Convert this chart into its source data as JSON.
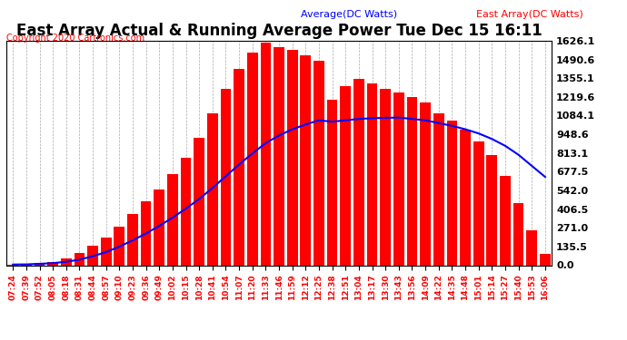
{
  "title": "East Array Actual & Running Average Power Tue Dec 15 16:11",
  "copyright": "Copyright 2020 Cartronics.com",
  "legend_avg": "Average(DC Watts)",
  "legend_east": "East Array(DC Watts)",
  "ylabel_right_values": [
    1626.1,
    1490.6,
    1355.1,
    1219.6,
    1084.1,
    948.6,
    813.1,
    677.5,
    542.0,
    406.5,
    271.0,
    135.5,
    0.0
  ],
  "ymax": 1626.1,
  "ymin": 0.0,
  "bar_color": "#FF0000",
  "avg_line_color": "#0000FF",
  "bg_color": "#FFFFFF",
  "grid_color": "#AAAAAA",
  "title_color": "#000000",
  "copyright_color": "#FF0000",
  "legend_avg_color": "#0000FF",
  "legend_east_color": "#FF0000",
  "x_tick_interval": 5,
  "time_labels": [
    "07:24",
    "07:39",
    "07:52",
    "08:05",
    "08:18",
    "08:31",
    "08:44",
    "08:57",
    "09:10",
    "09:23",
    "09:36",
    "09:49",
    "10:02",
    "10:15",
    "10:28",
    "10:41",
    "10:54",
    "11:07",
    "11:20",
    "11:33",
    "11:46",
    "11:59",
    "12:12",
    "12:25",
    "12:38",
    "12:51",
    "13:04",
    "13:17",
    "13:30",
    "13:43",
    "13:56",
    "14:09",
    "14:22",
    "14:35",
    "14:48",
    "15:01",
    "15:14",
    "15:27",
    "15:40",
    "15:53",
    "16:06"
  ],
  "east_values": [
    5,
    8,
    15,
    25,
    50,
    90,
    140,
    200,
    280,
    370,
    460,
    550,
    660,
    780,
    920,
    1100,
    1280,
    1420,
    1540,
    1610,
    1580,
    1560,
    1520,
    1480,
    1200,
    1300,
    1350,
    1320,
    1280,
    1250,
    1220,
    1180,
    1100,
    1050,
    980,
    900,
    800,
    650,
    450,
    250,
    80
  ],
  "avg_values": [
    5,
    6,
    10,
    15,
    25,
    40,
    65,
    95,
    135,
    180,
    230,
    285,
    345,
    410,
    480,
    560,
    645,
    730,
    810,
    885,
    940,
    985,
    1020,
    1050,
    1040,
    1050,
    1060,
    1065,
    1068,
    1070,
    1060,
    1050,
    1030,
    1010,
    985,
    955,
    915,
    865,
    800,
    720,
    640
  ]
}
